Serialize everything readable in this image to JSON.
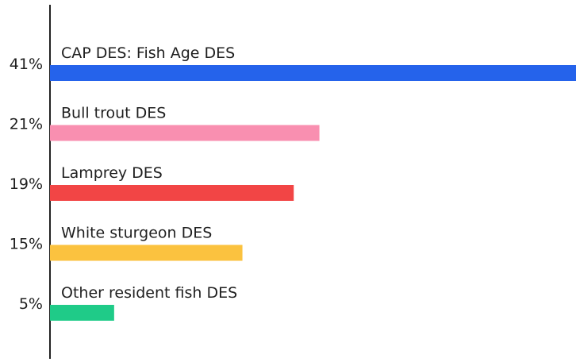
{
  "chart_data": {
    "type": "bar",
    "orientation": "horizontal",
    "categories": [
      "CAP DES: Fish Age DES",
      "Bull trout DES",
      "Lamprey DES",
      "White sturgeon DES",
      "Other resident fish DES"
    ],
    "values": [
      41,
      21,
      19,
      15,
      5
    ],
    "value_labels": [
      "41%",
      "21%",
      "19%",
      "15%",
      "5%"
    ],
    "colors": [
      "#2563EB",
      "#F98FB0",
      "#F24545",
      "#FBC23F",
      "#1FCB88"
    ],
    "xlim": [
      0,
      41
    ],
    "grid": false,
    "legend": "none"
  }
}
